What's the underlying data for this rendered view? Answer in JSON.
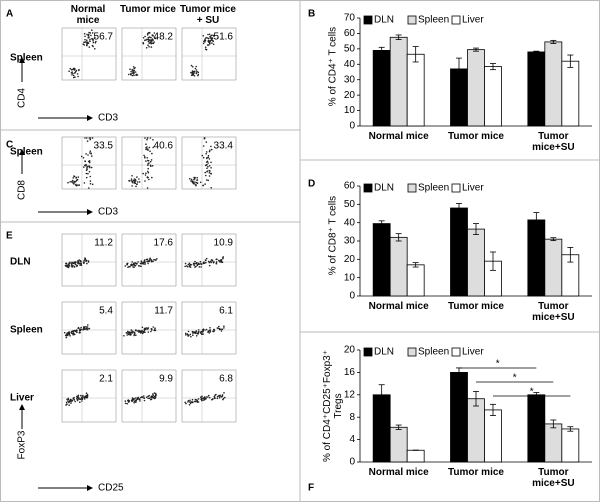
{
  "flow_panels": [
    {
      "letter": "A",
      "columns": [
        "Normal mice",
        "Tumor mice",
        "Tumor mice + SU"
      ],
      "y_axis": "CD4",
      "x_axis": "CD3",
      "rows": [
        {
          "label": "Spleen",
          "values": [
            56.7,
            48.2,
            51.6
          ]
        }
      ]
    },
    {
      "letter": "C",
      "y_axis": "CD8",
      "x_axis": "CD3",
      "rows": [
        {
          "label": "Spleen",
          "values": [
            33.5,
            40.6,
            33.4
          ]
        }
      ]
    },
    {
      "letter": "E",
      "y_axis": "FoxP3",
      "x_axis": "CD25",
      "rows": [
        {
          "label": "DLN",
          "values": [
            11.2,
            17.6,
            10.9
          ]
        },
        {
          "label": "Spleen",
          "values": [
            5.4,
            11.7,
            6.1
          ]
        },
        {
          "label": "Liver",
          "values": [
            2.1,
            9.9,
            6.8
          ]
        }
      ]
    }
  ],
  "chart_data": [
    {
      "type": "bar",
      "letter": "B",
      "y_label": "% of CD4⁺ T cells",
      "categories": [
        "Normal mice",
        "Tumor mice",
        "Tumor mice+SU"
      ],
      "ylim": [
        0,
        70
      ],
      "yticks": [
        0,
        10,
        20,
        30,
        40,
        50,
        60,
        70
      ],
      "series": [
        {
          "name": "DLN",
          "color": "#000000",
          "values": [
            49,
            37,
            48
          ],
          "errors": [
            2,
            7,
            0.5
          ]
        },
        {
          "name": "Spleen",
          "color": "#dddddd",
          "values": [
            57.5,
            49.5,
            54.5
          ],
          "errors": [
            1.5,
            1,
            1
          ]
        },
        {
          "name": "Liver",
          "color": "#ffffff",
          "values": [
            46.5,
            38.5,
            42
          ],
          "errors": [
            5,
            2,
            4
          ]
        }
      ]
    },
    {
      "type": "bar",
      "letter": "D",
      "y_label": "% of CD8⁺ T cells",
      "categories": [
        "Normal mice",
        "Tumor mice",
        "Tumor mice+SU"
      ],
      "ylim": [
        0,
        60
      ],
      "yticks": [
        0,
        10,
        20,
        30,
        40,
        50,
        60
      ],
      "series": [
        {
          "name": "DLN",
          "color": "#000000",
          "values": [
            39.5,
            48,
            41.5
          ],
          "errors": [
            1.5,
            2.5,
            4
          ]
        },
        {
          "name": "Spleen",
          "color": "#dddddd",
          "values": [
            32,
            36.5,
            31
          ],
          "errors": [
            2,
            3,
            0.8
          ]
        },
        {
          "name": "Liver",
          "color": "#ffffff",
          "values": [
            17,
            19,
            22.5
          ],
          "errors": [
            1.2,
            5,
            4
          ]
        }
      ]
    },
    {
      "type": "bar",
      "letter": "F",
      "y_label": "% of CD4⁺CD25⁺Foxp3⁺ Tregs",
      "categories": [
        "Normal mice",
        "Tumor mice",
        "Tumor mice+SU"
      ],
      "ylim": [
        0,
        20
      ],
      "yticks": [
        0,
        4,
        8,
        12,
        16,
        20
      ],
      "annotations": [
        "*",
        "*",
        "*"
      ],
      "series": [
        {
          "name": "DLN",
          "color": "#000000",
          "values": [
            12,
            16,
            12
          ],
          "errors": [
            1.8,
            0.8,
            0.4
          ]
        },
        {
          "name": "Spleen",
          "color": "#dddddd",
          "values": [
            6.2,
            11.3,
            6.8
          ],
          "errors": [
            0.4,
            1.3,
            0.7
          ]
        },
        {
          "name": "Liver",
          "color": "#ffffff",
          "values": [
            2.1,
            9.3,
            5.9
          ],
          "errors": [
            0,
            1,
            0.4
          ]
        }
      ]
    }
  ]
}
